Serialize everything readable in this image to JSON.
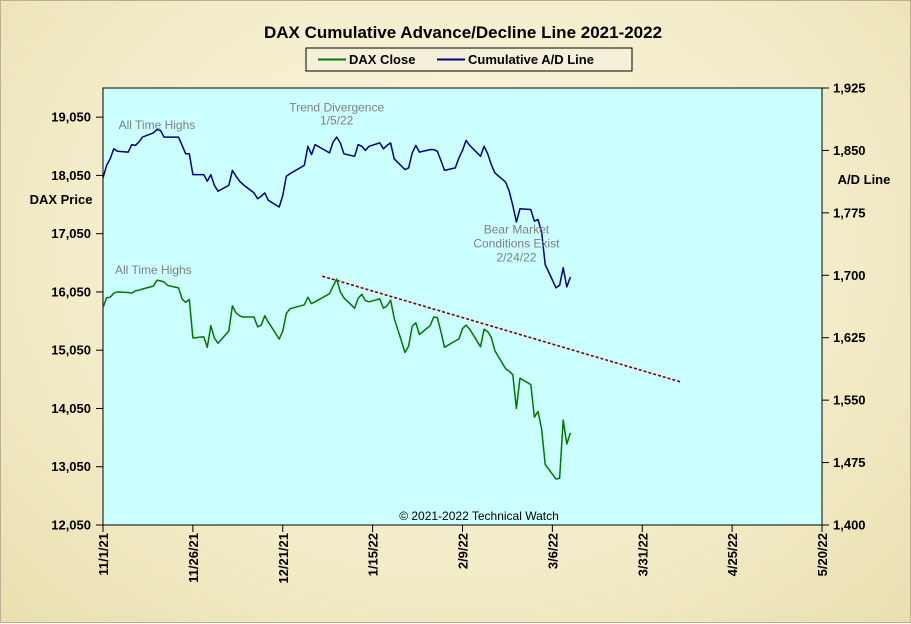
{
  "chart_data": {
    "type": "line",
    "title": "DAX Cumulative  Advance/Decline  Line  2021-2022",
    "ylabel_left": "DAX Price",
    "ylabel_right": "A/D Line",
    "copyright": "© 2021-2022  Technical  Watch",
    "x_range": [
      "2021-11-01",
      "2022-05-20"
    ],
    "x_ticks": [
      "11/1/21",
      "11/26/21",
      "12/21/21",
      "1/15/22",
      "2/9/22",
      "3/6/22",
      "3/31/22",
      "4/25/22",
      "5/20/22"
    ],
    "x_tick_dates": [
      "2021-11-01",
      "2021-11-26",
      "2021-12-21",
      "2022-01-15",
      "2022-02-09",
      "2022-03-06",
      "2022-03-31",
      "2022-04-25",
      "2022-05-20"
    ],
    "y_left_range": [
      12050,
      19550
    ],
    "y_left_ticks": [
      "12,050",
      "13,050",
      "14,050",
      "15,050",
      "16,050",
      "17,050",
      "18,050",
      "19,050"
    ],
    "y_left_tick_values": [
      12050,
      13050,
      14050,
      15050,
      16050,
      17050,
      18050,
      19050
    ],
    "y_right_range": [
      1400,
      1925
    ],
    "y_right_ticks": [
      "1,400",
      "1,475",
      "1,550",
      "1,625",
      "1,700",
      "1,775",
      "1,850",
      "1,925"
    ],
    "y_right_tick_values": [
      1400,
      1475,
      1550,
      1625,
      1700,
      1775,
      1850,
      1925
    ],
    "grid": false,
    "legend_position": "top-center",
    "colors": {
      "plot_bg": "#ccffff",
      "dax": "#007800",
      "ad": "#000080",
      "trend": "#800000"
    },
    "series": [
      {
        "name": "DAX Close",
        "axis": "left",
        "points": [
          [
            "2021-11-01",
            15780
          ],
          [
            "2021-11-02",
            15950
          ],
          [
            "2021-11-03",
            15960
          ],
          [
            "2021-11-04",
            16030
          ],
          [
            "2021-11-05",
            16050
          ],
          [
            "2021-11-08",
            16040
          ],
          [
            "2021-11-09",
            16030
          ],
          [
            "2021-11-10",
            16070
          ],
          [
            "2021-11-11",
            16080
          ],
          [
            "2021-11-12",
            16100
          ],
          [
            "2021-11-15",
            16150
          ],
          [
            "2021-11-16",
            16250
          ],
          [
            "2021-11-17",
            16240
          ],
          [
            "2021-11-18",
            16220
          ],
          [
            "2021-11-19",
            16160
          ],
          [
            "2021-11-22",
            16120
          ],
          [
            "2021-11-23",
            15930
          ],
          [
            "2021-11-24",
            15870
          ],
          [
            "2021-11-25",
            15920
          ],
          [
            "2021-11-26",
            15260
          ],
          [
            "2021-11-29",
            15280
          ],
          [
            "2021-11-30",
            15100
          ],
          [
            "2021-12-01",
            15470
          ],
          [
            "2021-12-02",
            15260
          ],
          [
            "2021-12-03",
            15170
          ],
          [
            "2021-12-06",
            15380
          ],
          [
            "2021-12-07",
            15810
          ],
          [
            "2021-12-08",
            15690
          ],
          [
            "2021-12-09",
            15640
          ],
          [
            "2021-12-10",
            15620
          ],
          [
            "2021-12-13",
            15620
          ],
          [
            "2021-12-14",
            15450
          ],
          [
            "2021-12-15",
            15480
          ],
          [
            "2021-12-16",
            15640
          ],
          [
            "2021-12-17",
            15530
          ],
          [
            "2021-12-20",
            15240
          ],
          [
            "2021-12-21",
            15380
          ],
          [
            "2021-12-22",
            15680
          ],
          [
            "2021-12-23",
            15760
          ],
          [
            "2021-12-27",
            15830
          ],
          [
            "2021-12-28",
            15960
          ],
          [
            "2021-12-29",
            15850
          ],
          [
            "2021-12-30",
            15880
          ],
          [
            "2022-01-03",
            16020
          ],
          [
            "2022-01-04",
            16150
          ],
          [
            "2022-01-05",
            16270
          ],
          [
            "2022-01-06",
            16050
          ],
          [
            "2022-01-07",
            15950
          ],
          [
            "2022-01-10",
            15770
          ],
          [
            "2022-01-11",
            15940
          ],
          [
            "2022-01-12",
            16010
          ],
          [
            "2022-01-13",
            15900
          ],
          [
            "2022-01-14",
            15880
          ],
          [
            "2022-01-17",
            15930
          ],
          [
            "2022-01-18",
            15770
          ],
          [
            "2022-01-19",
            15810
          ],
          [
            "2022-01-20",
            15910
          ],
          [
            "2022-01-21",
            15600
          ],
          [
            "2022-01-24",
            15010
          ],
          [
            "2022-01-25",
            15120
          ],
          [
            "2022-01-26",
            15460
          ],
          [
            "2022-01-27",
            15520
          ],
          [
            "2022-01-28",
            15320
          ],
          [
            "2022-01-31",
            15470
          ],
          [
            "2022-02-01",
            15620
          ],
          [
            "2022-02-02",
            15610
          ],
          [
            "2022-02-03",
            15370
          ],
          [
            "2022-02-04",
            15100
          ],
          [
            "2022-02-07",
            15210
          ],
          [
            "2022-02-08",
            15240
          ],
          [
            "2022-02-09",
            15420
          ],
          [
            "2022-02-10",
            15480
          ],
          [
            "2022-02-11",
            15410
          ],
          [
            "2022-02-14",
            15110
          ],
          [
            "2022-02-15",
            15410
          ],
          [
            "2022-02-16",
            15370
          ],
          [
            "2022-02-17",
            15270
          ],
          [
            "2022-02-18",
            15040
          ],
          [
            "2022-02-21",
            14730
          ],
          [
            "2022-02-22",
            14690
          ],
          [
            "2022-02-23",
            14630
          ],
          [
            "2022-02-24",
            14050
          ],
          [
            "2022-02-25",
            14570
          ],
          [
            "2022-02-28",
            14460
          ],
          [
            "2022-03-01",
            13900
          ],
          [
            "2022-03-02",
            14000
          ],
          [
            "2022-03-03",
            13700
          ],
          [
            "2022-03-04",
            13090
          ],
          [
            "2022-03-07",
            12840
          ],
          [
            "2022-03-08",
            12850
          ],
          [
            "2022-03-09",
            13850
          ],
          [
            "2022-03-10",
            13440
          ],
          [
            "2022-03-11",
            13630
          ]
        ]
      },
      {
        "name": "Cumulative A/D Line",
        "axis": "right",
        "points": [
          [
            "2021-11-01",
            1817
          ],
          [
            "2021-11-02",
            1832
          ],
          [
            "2021-11-03",
            1840
          ],
          [
            "2021-11-04",
            1852
          ],
          [
            "2021-11-05",
            1849
          ],
          [
            "2021-11-08",
            1848
          ],
          [
            "2021-11-09",
            1857
          ],
          [
            "2021-11-10",
            1856
          ],
          [
            "2021-11-11",
            1860
          ],
          [
            "2021-11-12",
            1866
          ],
          [
            "2021-11-15",
            1871
          ],
          [
            "2021-11-16",
            1875
          ],
          [
            "2021-11-17",
            1874
          ],
          [
            "2021-11-18",
            1866
          ],
          [
            "2021-11-19",
            1866
          ],
          [
            "2021-11-22",
            1866
          ],
          [
            "2021-11-23",
            1856
          ],
          [
            "2021-11-24",
            1846
          ],
          [
            "2021-11-25",
            1846
          ],
          [
            "2021-11-26",
            1821
          ],
          [
            "2021-11-29",
            1821
          ],
          [
            "2021-11-30",
            1813
          ],
          [
            "2021-12-01",
            1821
          ],
          [
            "2021-12-02",
            1808
          ],
          [
            "2021-12-03",
            1801
          ],
          [
            "2021-12-06",
            1808
          ],
          [
            "2021-12-07",
            1826
          ],
          [
            "2021-12-08",
            1819
          ],
          [
            "2021-12-09",
            1813
          ],
          [
            "2021-12-10",
            1809
          ],
          [
            "2021-12-13",
            1799
          ],
          [
            "2021-12-14",
            1792
          ],
          [
            "2021-12-15",
            1795
          ],
          [
            "2021-12-16",
            1799
          ],
          [
            "2021-12-17",
            1790
          ],
          [
            "2021-12-20",
            1782
          ],
          [
            "2021-12-21",
            1796
          ],
          [
            "2021-12-22",
            1819
          ],
          [
            "2021-12-23",
            1822
          ],
          [
            "2021-12-27",
            1832
          ],
          [
            "2021-12-28",
            1855
          ],
          [
            "2021-12-29",
            1845
          ],
          [
            "2021-12-30",
            1857
          ],
          [
            "2022-01-03",
            1847
          ],
          [
            "2022-01-04",
            1860
          ],
          [
            "2022-01-05",
            1866
          ],
          [
            "2022-01-06",
            1859
          ],
          [
            "2022-01-07",
            1846
          ],
          [
            "2022-01-10",
            1843
          ],
          [
            "2022-01-11",
            1857
          ],
          [
            "2022-01-12",
            1855
          ],
          [
            "2022-01-13",
            1850
          ],
          [
            "2022-01-14",
            1855
          ],
          [
            "2022-01-17",
            1859
          ],
          [
            "2022-01-18",
            1852
          ],
          [
            "2022-01-19",
            1856
          ],
          [
            "2022-01-20",
            1859
          ],
          [
            "2022-01-21",
            1840
          ],
          [
            "2022-01-24",
            1827
          ],
          [
            "2022-01-25",
            1829
          ],
          [
            "2022-01-26",
            1847
          ],
          [
            "2022-01-27",
            1856
          ],
          [
            "2022-01-28",
            1848
          ],
          [
            "2022-01-31",
            1851
          ],
          [
            "2022-02-01",
            1851
          ],
          [
            "2022-02-02",
            1849
          ],
          [
            "2022-02-03",
            1838
          ],
          [
            "2022-02-04",
            1826
          ],
          [
            "2022-02-07",
            1829
          ],
          [
            "2022-02-08",
            1841
          ],
          [
            "2022-02-09",
            1850
          ],
          [
            "2022-02-10",
            1862
          ],
          [
            "2022-02-11",
            1856
          ],
          [
            "2022-02-14",
            1843
          ],
          [
            "2022-02-15",
            1855
          ],
          [
            "2022-02-16",
            1846
          ],
          [
            "2022-02-17",
            1833
          ],
          [
            "2022-02-18",
            1823
          ],
          [
            "2022-02-21",
            1812
          ],
          [
            "2022-02-22",
            1801
          ],
          [
            "2022-02-23",
            1784
          ],
          [
            "2022-02-24",
            1764
          ],
          [
            "2022-02-25",
            1780
          ],
          [
            "2022-02-28",
            1779
          ],
          [
            "2022-03-01",
            1765
          ],
          [
            "2022-03-02",
            1767
          ],
          [
            "2022-03-03",
            1752
          ],
          [
            "2022-03-04",
            1713
          ],
          [
            "2022-03-07",
            1685
          ],
          [
            "2022-03-08",
            1688
          ],
          [
            "2022-03-09",
            1709
          ],
          [
            "2022-03-10",
            1686
          ],
          [
            "2022-03-11",
            1698
          ]
        ]
      }
    ],
    "trendline": {
      "axis": "left",
      "style": "dashed",
      "start": [
        "2022-01-01",
        16320
      ],
      "end": [
        "2022-04-11",
        14500
      ]
    },
    "annotations": [
      {
        "text": "All Time Highs",
        "anchor": [
          "2021-11-16",
          18850
        ],
        "axis": "left"
      },
      {
        "text": "Trend  Divergence",
        "anchor": [
          "2022-01-05",
          19150
        ],
        "axis": "left"
      },
      {
        "text": "1/5/22",
        "anchor": [
          "2022-01-05",
          18920
        ],
        "axis": "left"
      },
      {
        "text": "All Time Highs",
        "anchor": [
          "2021-11-15",
          16360
        ],
        "axis": "left"
      },
      {
        "text": "Bear  Market",
        "anchor": [
          "2022-02-24",
          17050
        ],
        "axis": "left"
      },
      {
        "text": "Conditions  Exist",
        "anchor": [
          "2022-02-24",
          16810
        ],
        "axis": "left"
      },
      {
        "text": "2/24/22",
        "anchor": [
          "2022-02-24",
          16570
        ],
        "axis": "left"
      }
    ]
  }
}
